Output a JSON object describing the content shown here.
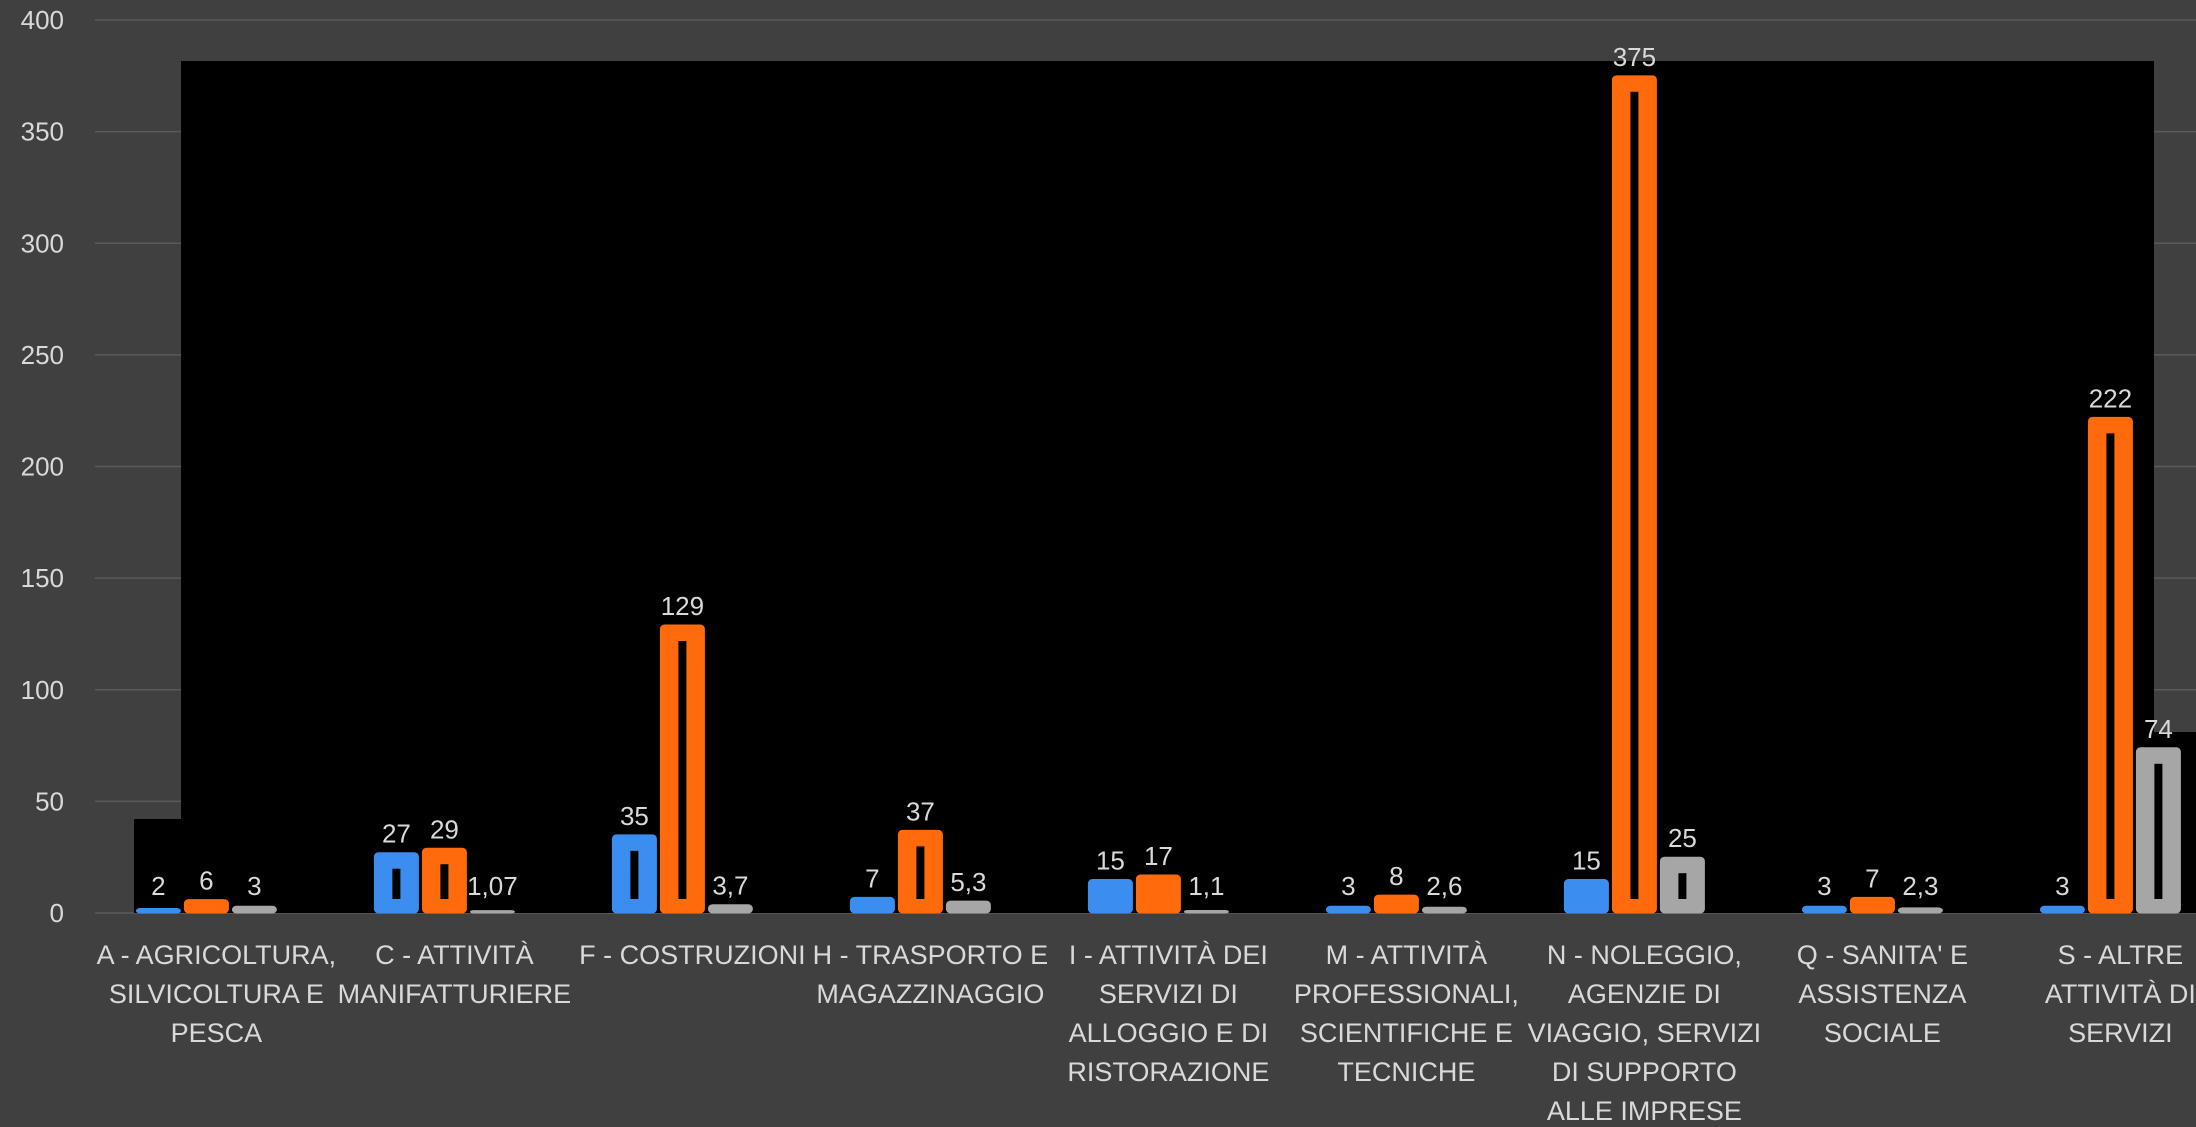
{
  "chart_data": {
    "type": "bar",
    "ylim": [
      0,
      400
    ],
    "yticks": [
      "0",
      "50",
      "100",
      "150",
      "200",
      "250",
      "300",
      "350",
      "400"
    ],
    "categories": [
      [
        "A - AGRICOLTURA,",
        "SILVICOLTURA E",
        "PESCA"
      ],
      [
        "C - ATTIVITÀ",
        "MANIFATTURIERE"
      ],
      [
        "F - COSTRUZIONI"
      ],
      [
        "H - TRASPORTO E",
        "MAGAZZINAGGIO"
      ],
      [
        "I - ATTIVITÀ DEI",
        "SERVIZI DI",
        "ALLOGGIO E DI",
        "RISTORAZIONE"
      ],
      [
        "M - ATTIVITÀ",
        "PROFESSIONALI,",
        "SCIENTIFICHE E",
        "TECNICHE"
      ],
      [
        "N - NOLEGGIO,",
        "AGENZIE DI",
        "VIAGGIO, SERVIZI",
        "DI SUPPORTO",
        "ALLE IMPRESE"
      ],
      [
        "Q - SANITA' E",
        "ASSISTENZA",
        "SOCIALE"
      ],
      [
        "S - ALTRE",
        "ATTIVITÀ DI",
        "SERVIZI"
      ]
    ],
    "series": [
      {
        "color": "#3b8ef0",
        "values": [
          2,
          27,
          35,
          7,
          15,
          3,
          15,
          3,
          3
        ],
        "labels": [
          "2",
          "27",
          "35",
          "7",
          "15",
          "3",
          "15",
          "3",
          "3"
        ]
      },
      {
        "color": "#ff6a0d",
        "values": [
          6,
          29,
          129,
          37,
          17,
          8,
          375,
          7,
          222
        ],
        "labels": [
          "6",
          "29",
          "129",
          "37",
          "17",
          "8",
          "375",
          "7",
          "222"
        ]
      },
      {
        "color": "#a6a6a6",
        "values": [
          3,
          1.07,
          3.7,
          5.3,
          1.1,
          2.6,
          25,
          2.3,
          74
        ],
        "labels": [
          "3",
          "1,07",
          "3,7",
          "5,3",
          "1,1",
          "2,6",
          "25",
          "2,3",
          "74"
        ]
      }
    ],
    "grid": true,
    "legend": "none"
  }
}
